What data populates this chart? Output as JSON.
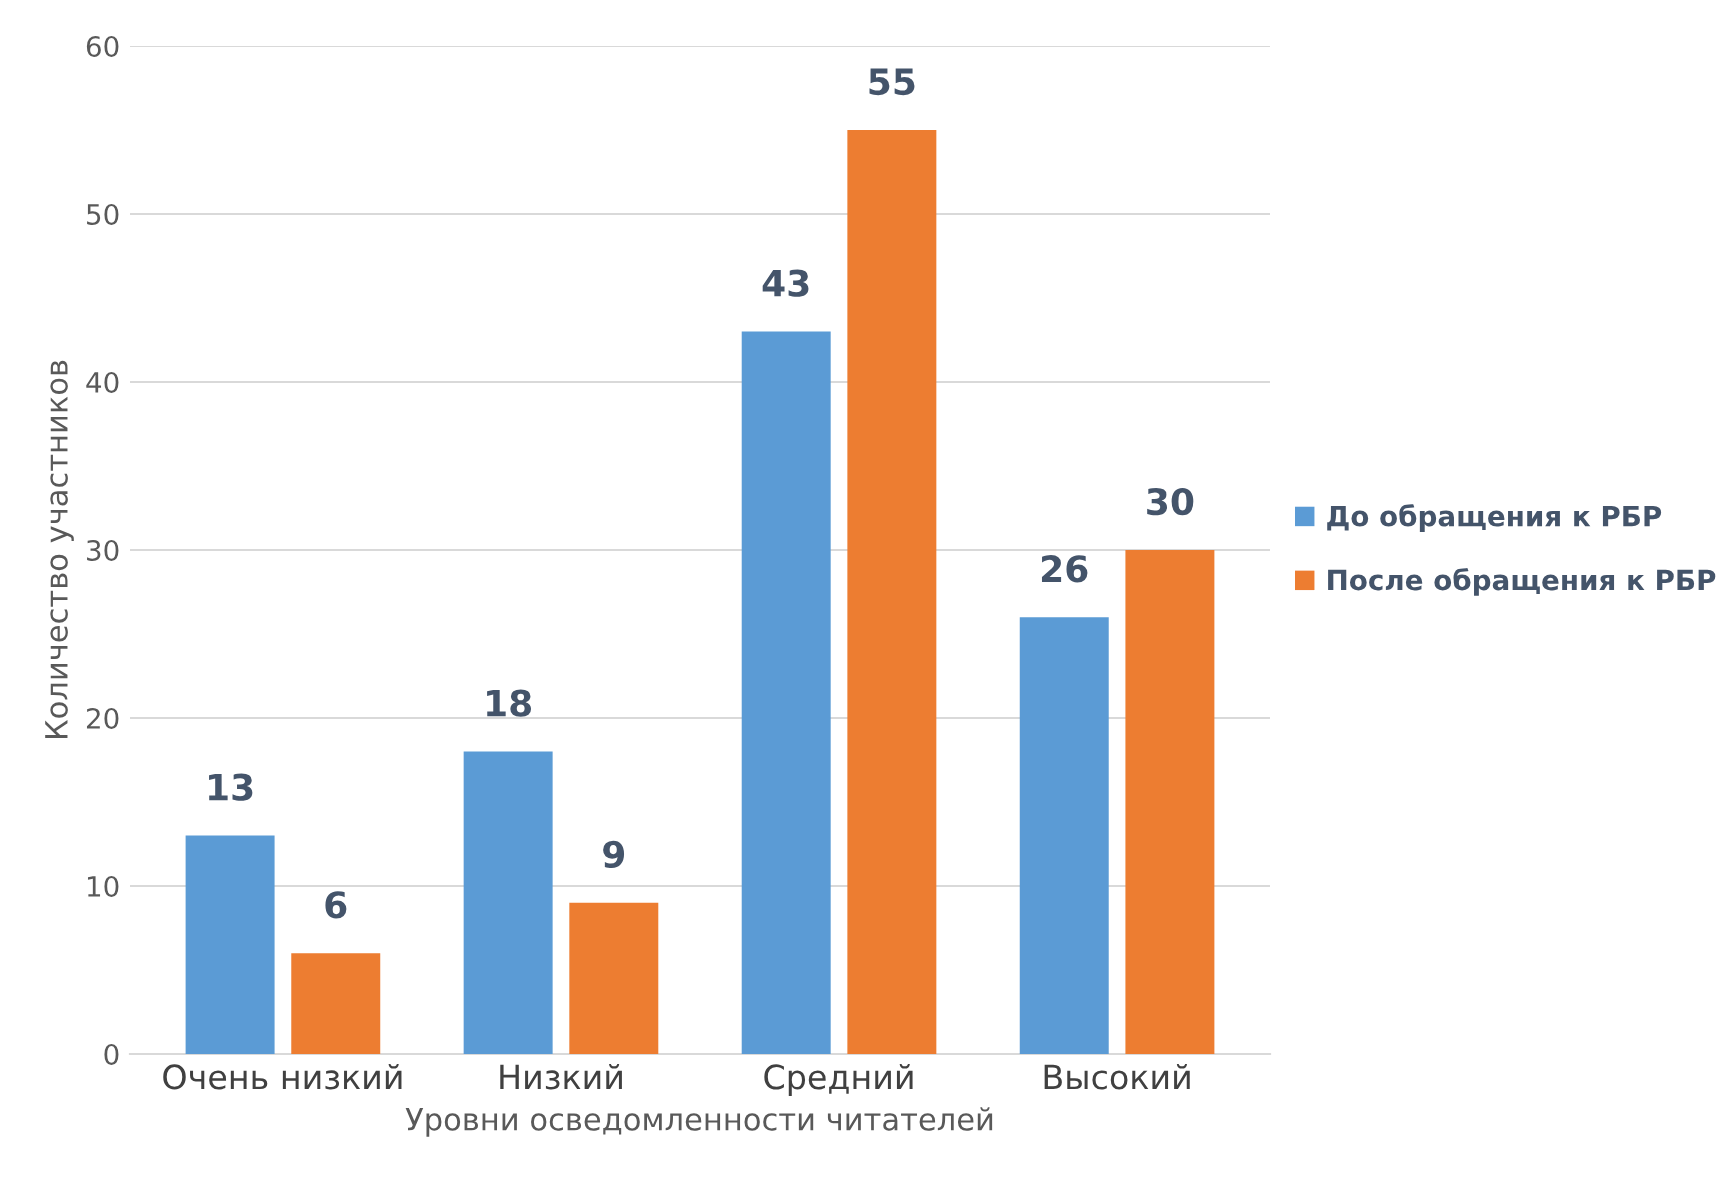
{
  "chart_data": {
    "type": "bar",
    "xlabel": "Уровни осведомленности читателей",
    "ylabel": "Количество участников",
    "categories": [
      "Очень низкий",
      "Низкий",
      "Средний",
      "Высокий"
    ],
    "series": [
      {
        "name": "До обращения к РБР",
        "color": "#5b9bd5",
        "values": [
          13,
          18,
          43,
          26
        ]
      },
      {
        "name": "После обращения к РБР",
        "color": "#ed7d31",
        "values": [
          6,
          9,
          55,
          30
        ]
      }
    ],
    "ylim": [
      0,
      60
    ],
    "yticks": [
      0,
      10,
      20,
      30,
      40,
      50,
      60
    ],
    "grid": "y",
    "legend": "right",
    "data_labels": true
  }
}
